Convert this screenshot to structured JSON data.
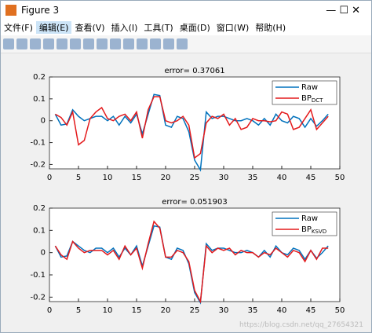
{
  "window": {
    "title": "Figure 3",
    "menu": [
      "文件(F)",
      "编辑(E)",
      "查看(V)",
      "插入(I)",
      "工具(T)",
      "桌面(D)",
      "窗口(W)",
      "帮助(H)"
    ],
    "watermark": "https://blog.csdn.net/qq_27654321"
  },
  "chart_data": [
    {
      "type": "line",
      "title": "error= 0.37061",
      "x": [
        1,
        2,
        3,
        4,
        5,
        6,
        7,
        8,
        9,
        10,
        11,
        12,
        13,
        14,
        15,
        16,
        17,
        18,
        19,
        20,
        21,
        22,
        23,
        24,
        25,
        26,
        27,
        28,
        29,
        30,
        31,
        32,
        33,
        34,
        35,
        36,
        37,
        38,
        39,
        40,
        41,
        42,
        43,
        44,
        45,
        46,
        47,
        48
      ],
      "xlim": [
        0,
        50
      ],
      "xticks": [
        0,
        5,
        10,
        15,
        20,
        25,
        30,
        35,
        40,
        45,
        50
      ],
      "ylim": [
        -0.22,
        0.2
      ],
      "yticks": [
        -0.2,
        -0.1,
        0,
        0.1,
        0.2
      ],
      "legend": "upper right",
      "series": [
        {
          "name": "Raw",
          "color": "#0072bd",
          "values": [
            0.03,
            -0.02,
            -0.015,
            0.05,
            0.02,
            0.0,
            0.01,
            0.02,
            0.02,
            0.0,
            0.02,
            -0.02,
            0.02,
            -0.01,
            0.03,
            -0.06,
            0.03,
            0.12,
            0.115,
            -0.02,
            -0.03,
            0.02,
            0.01,
            -0.05,
            -0.18,
            -0.225,
            0.04,
            0.01,
            0.02,
            0.02,
            0.01,
            0.0,
            0.0,
            0.01,
            0.0,
            -0.02,
            0.01,
            -0.02,
            0.03,
            0.0,
            -0.01,
            0.02,
            0.01,
            -0.03,
            0.01,
            -0.025,
            0.0,
            0.03
          ]
        },
        {
          "name": "BP",
          "name_subscript": "DCT",
          "color": "#e41a1c",
          "values": [
            0.03,
            0.015,
            -0.02,
            0.04,
            -0.11,
            -0.09,
            0.01,
            0.04,
            0.06,
            0.01,
            0.0,
            0.02,
            0.03,
            0.0,
            0.04,
            -0.08,
            0.05,
            0.11,
            0.11,
            0.0,
            -0.01,
            0.0,
            0.02,
            -0.02,
            -0.17,
            -0.15,
            -0.01,
            0.02,
            0.01,
            0.03,
            -0.02,
            0.01,
            -0.04,
            -0.03,
            0.01,
            0.0,
            0.0,
            -0.005,
            0.0,
            0.04,
            0.03,
            -0.04,
            -0.03,
            0.01,
            0.05,
            -0.04,
            -0.01,
            0.02
          ]
        }
      ]
    },
    {
      "type": "line",
      "title": "error= 0.051903",
      "x": [
        1,
        2,
        3,
        4,
        5,
        6,
        7,
        8,
        9,
        10,
        11,
        12,
        13,
        14,
        15,
        16,
        17,
        18,
        19,
        20,
        21,
        22,
        23,
        24,
        25,
        26,
        27,
        28,
        29,
        30,
        31,
        32,
        33,
        34,
        35,
        36,
        37,
        38,
        39,
        40,
        41,
        42,
        43,
        44,
        45,
        46,
        47,
        48
      ],
      "xlim": [
        0,
        50
      ],
      "xticks": [
        0,
        5,
        10,
        15,
        20,
        25,
        30,
        35,
        40,
        45,
        50
      ],
      "ylim": [
        -0.22,
        0.2
      ],
      "yticks": [
        -0.2,
        -0.1,
        0,
        0.1,
        0.2
      ],
      "legend": "upper right",
      "series": [
        {
          "name": "Raw",
          "color": "#0072bd",
          "values": [
            0.03,
            -0.02,
            -0.015,
            0.05,
            0.03,
            0.01,
            0.0,
            0.02,
            0.02,
            0.0,
            0.02,
            -0.02,
            0.02,
            -0.01,
            0.03,
            -0.06,
            0.03,
            0.12,
            0.115,
            -0.02,
            -0.03,
            0.02,
            0.01,
            -0.05,
            -0.18,
            -0.225,
            0.04,
            0.01,
            0.02,
            0.02,
            0.01,
            0.0,
            0.0,
            0.01,
            0.0,
            -0.02,
            0.01,
            -0.02,
            0.03,
            0.0,
            -0.01,
            0.02,
            0.01,
            -0.03,
            0.01,
            -0.025,
            0.0,
            0.03
          ]
        },
        {
          "name": "BP",
          "name_subscript": "KSVD",
          "color": "#e41a1c",
          "values": [
            0.03,
            -0.01,
            -0.03,
            0.05,
            0.02,
            0.0,
            0.01,
            0.01,
            0.01,
            -0.01,
            0.01,
            -0.03,
            0.03,
            -0.01,
            0.02,
            -0.07,
            0.04,
            0.14,
            0.11,
            -0.02,
            -0.02,
            0.01,
            0.0,
            -0.04,
            -0.17,
            -0.22,
            0.03,
            0.0,
            0.02,
            0.01,
            0.02,
            -0.01,
            0.01,
            0.0,
            0.0,
            -0.02,
            0.0,
            -0.01,
            0.02,
            0.0,
            -0.02,
            0.01,
            0.0,
            -0.04,
            0.01,
            -0.03,
            0.02,
            0.02
          ]
        }
      ]
    }
  ]
}
